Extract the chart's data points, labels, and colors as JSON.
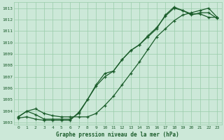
{
  "title": "Graphe pression niveau de la mer (hPa)",
  "bg_color": "#cce8d8",
  "grid_color": "#99ccaa",
  "line_color": "#1a5c2a",
  "xlim": [
    -0.5,
    23.5
  ],
  "ylim": [
    1002.8,
    1013.5
  ],
  "yticks": [
    1003,
    1004,
    1005,
    1006,
    1007,
    1008,
    1009,
    1010,
    1011,
    1012,
    1013
  ],
  "xticks": [
    0,
    1,
    2,
    3,
    4,
    5,
    6,
    7,
    8,
    9,
    10,
    11,
    12,
    13,
    14,
    15,
    16,
    17,
    18,
    19,
    20,
    21,
    22,
    23
  ],
  "series1_x": [
    0,
    1,
    2,
    3,
    4,
    5,
    6,
    7,
    8,
    9,
    10,
    11,
    12,
    13,
    14,
    15,
    16,
    17,
    18,
    19,
    20,
    21,
    22,
    23
  ],
  "series1_y": [
    1003.5,
    1004.0,
    1003.7,
    1003.3,
    1003.3,
    1003.3,
    1003.3,
    1003.8,
    1005.0,
    1006.3,
    1007.3,
    1007.5,
    1008.5,
    1009.3,
    1009.8,
    1010.6,
    1011.3,
    1012.3,
    1013.0,
    1012.8,
    1012.5,
    1012.5,
    1012.2,
    1012.2
  ],
  "series2_x": [
    0,
    1,
    2,
    3,
    4,
    5,
    6,
    7,
    8,
    9,
    10,
    11,
    12,
    13,
    14,
    15,
    16,
    17,
    18,
    19,
    20,
    21,
    22,
    23
  ],
  "series2_y": [
    1003.4,
    1003.5,
    1003.3,
    1003.2,
    1003.2,
    1003.2,
    1003.2,
    1003.9,
    1005.0,
    1006.2,
    1007.0,
    1007.5,
    1008.5,
    1009.3,
    1009.8,
    1010.5,
    1011.2,
    1012.4,
    1013.1,
    1012.8,
    1012.4,
    1012.6,
    1012.6,
    1012.1
  ],
  "series3_x": [
    0,
    1,
    2,
    3,
    4,
    5,
    6,
    7,
    8,
    9,
    10,
    11,
    12,
    13,
    14,
    15,
    16,
    17,
    18,
    19,
    20,
    21,
    22,
    23
  ],
  "series3_y": [
    1003.5,
    1004.0,
    1004.2,
    1003.8,
    1003.6,
    1003.5,
    1003.5,
    1003.5,
    1003.5,
    1003.8,
    1004.5,
    1005.3,
    1006.3,
    1007.3,
    1008.3,
    1009.4,
    1010.5,
    1011.2,
    1011.9,
    1012.4,
    1012.6,
    1012.8,
    1013.0,
    1012.2
  ]
}
